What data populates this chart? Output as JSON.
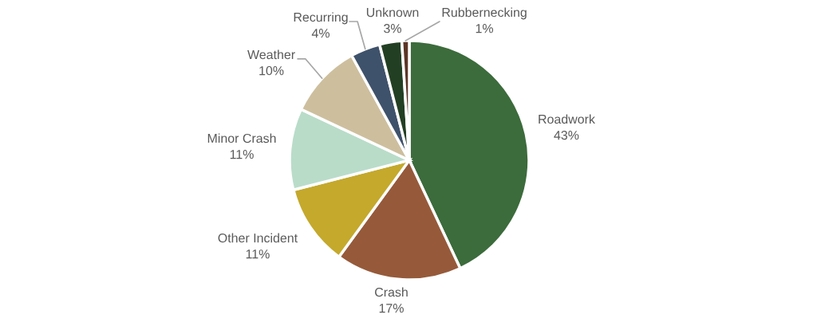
{
  "chart_data": {
    "type": "pie",
    "categories": [
      "Roadwork",
      "Crash",
      "Other Incident",
      "Minor Crash",
      "Weather",
      "Recurring",
      "Unknown",
      "Rubbernecking"
    ],
    "values": [
      43,
      17,
      11,
      11,
      10,
      4,
      3,
      1
    ],
    "value_labels": [
      "43%",
      "17%",
      "11%",
      "11%",
      "10%",
      "4%",
      "3%",
      "1%"
    ],
    "colors": [
      "#3c6b3c",
      "#965a3a",
      "#c4a92c",
      "#b9dcc9",
      "#cdbf9e",
      "#3f526b",
      "#233f23",
      "#5c3526"
    ]
  }
}
